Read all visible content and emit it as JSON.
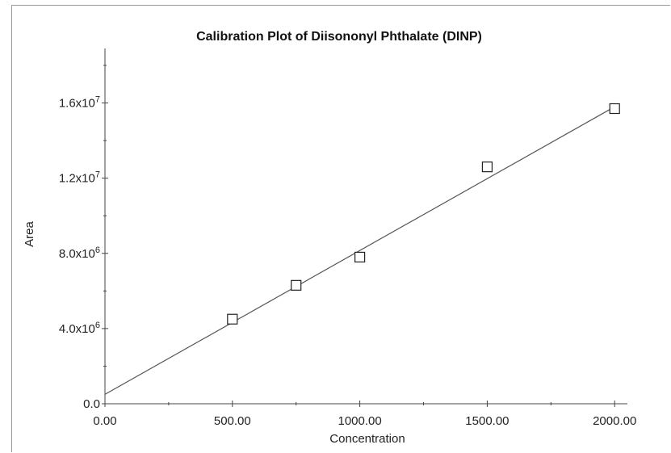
{
  "chart_data": {
    "type": "scatter",
    "title": "Calibration Plot of Diisononyl Phthalate (DINP)",
    "xlabel": "Concentration",
    "ylabel": "Area",
    "xlim": [
      0,
      2050
    ],
    "ylim": [
      0,
      18900000
    ],
    "x_ticks": [
      0,
      500,
      1000,
      1500,
      2000
    ],
    "x_tick_labels": [
      "0.00",
      "500.00",
      "1000.00",
      "1500.00",
      "2000.00"
    ],
    "y_ticks": [
      0,
      4000000,
      8000000,
      12000000,
      16000000
    ],
    "y_tick_labels": [
      {
        "base": "0.0",
        "exp": ""
      },
      {
        "base": "4.0x10",
        "exp": "6"
      },
      {
        "base": "8.0x10",
        "exp": "6"
      },
      {
        "base": "1.2x10",
        "exp": "7"
      },
      {
        "base": "1.6x10",
        "exp": "7"
      }
    ],
    "grid": false,
    "marker": "open-square",
    "series": [
      {
        "x": [
          500,
          750,
          1000,
          1500,
          2000
        ],
        "y": [
          4500000,
          6300000,
          7800000,
          12600000,
          15700000
        ]
      }
    ],
    "fit_line": {
      "x": [
        0,
        2000
      ],
      "y": [
        500000,
        15800000
      ]
    },
    "colors": {
      "line": "#555555",
      "marker": "#222222",
      "axis": "#444444"
    }
  }
}
